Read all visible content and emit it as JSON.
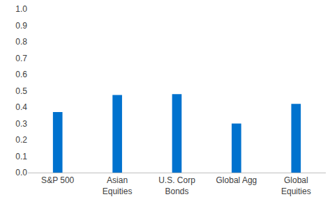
{
  "chart_data": {
    "type": "bar",
    "categories": [
      "S&P 500",
      "Asian Equities",
      "U.S. Corp Bonds",
      "Global Agg",
      "Global Equities"
    ],
    "values": [
      0.37,
      0.475,
      0.48,
      0.3,
      0.42
    ],
    "color": "#0072ce",
    "ylim": [
      0,
      1.0
    ],
    "yticks": [
      {
        "value": 0,
        "label": "0.0"
      },
      0.1,
      0.2,
      0.3,
      0.4,
      0.5,
      0.6,
      0.7,
      0.8,
      0.9,
      {
        "value": 1.0,
        "label": "1.0"
      }
    ],
    "grid": false
  }
}
